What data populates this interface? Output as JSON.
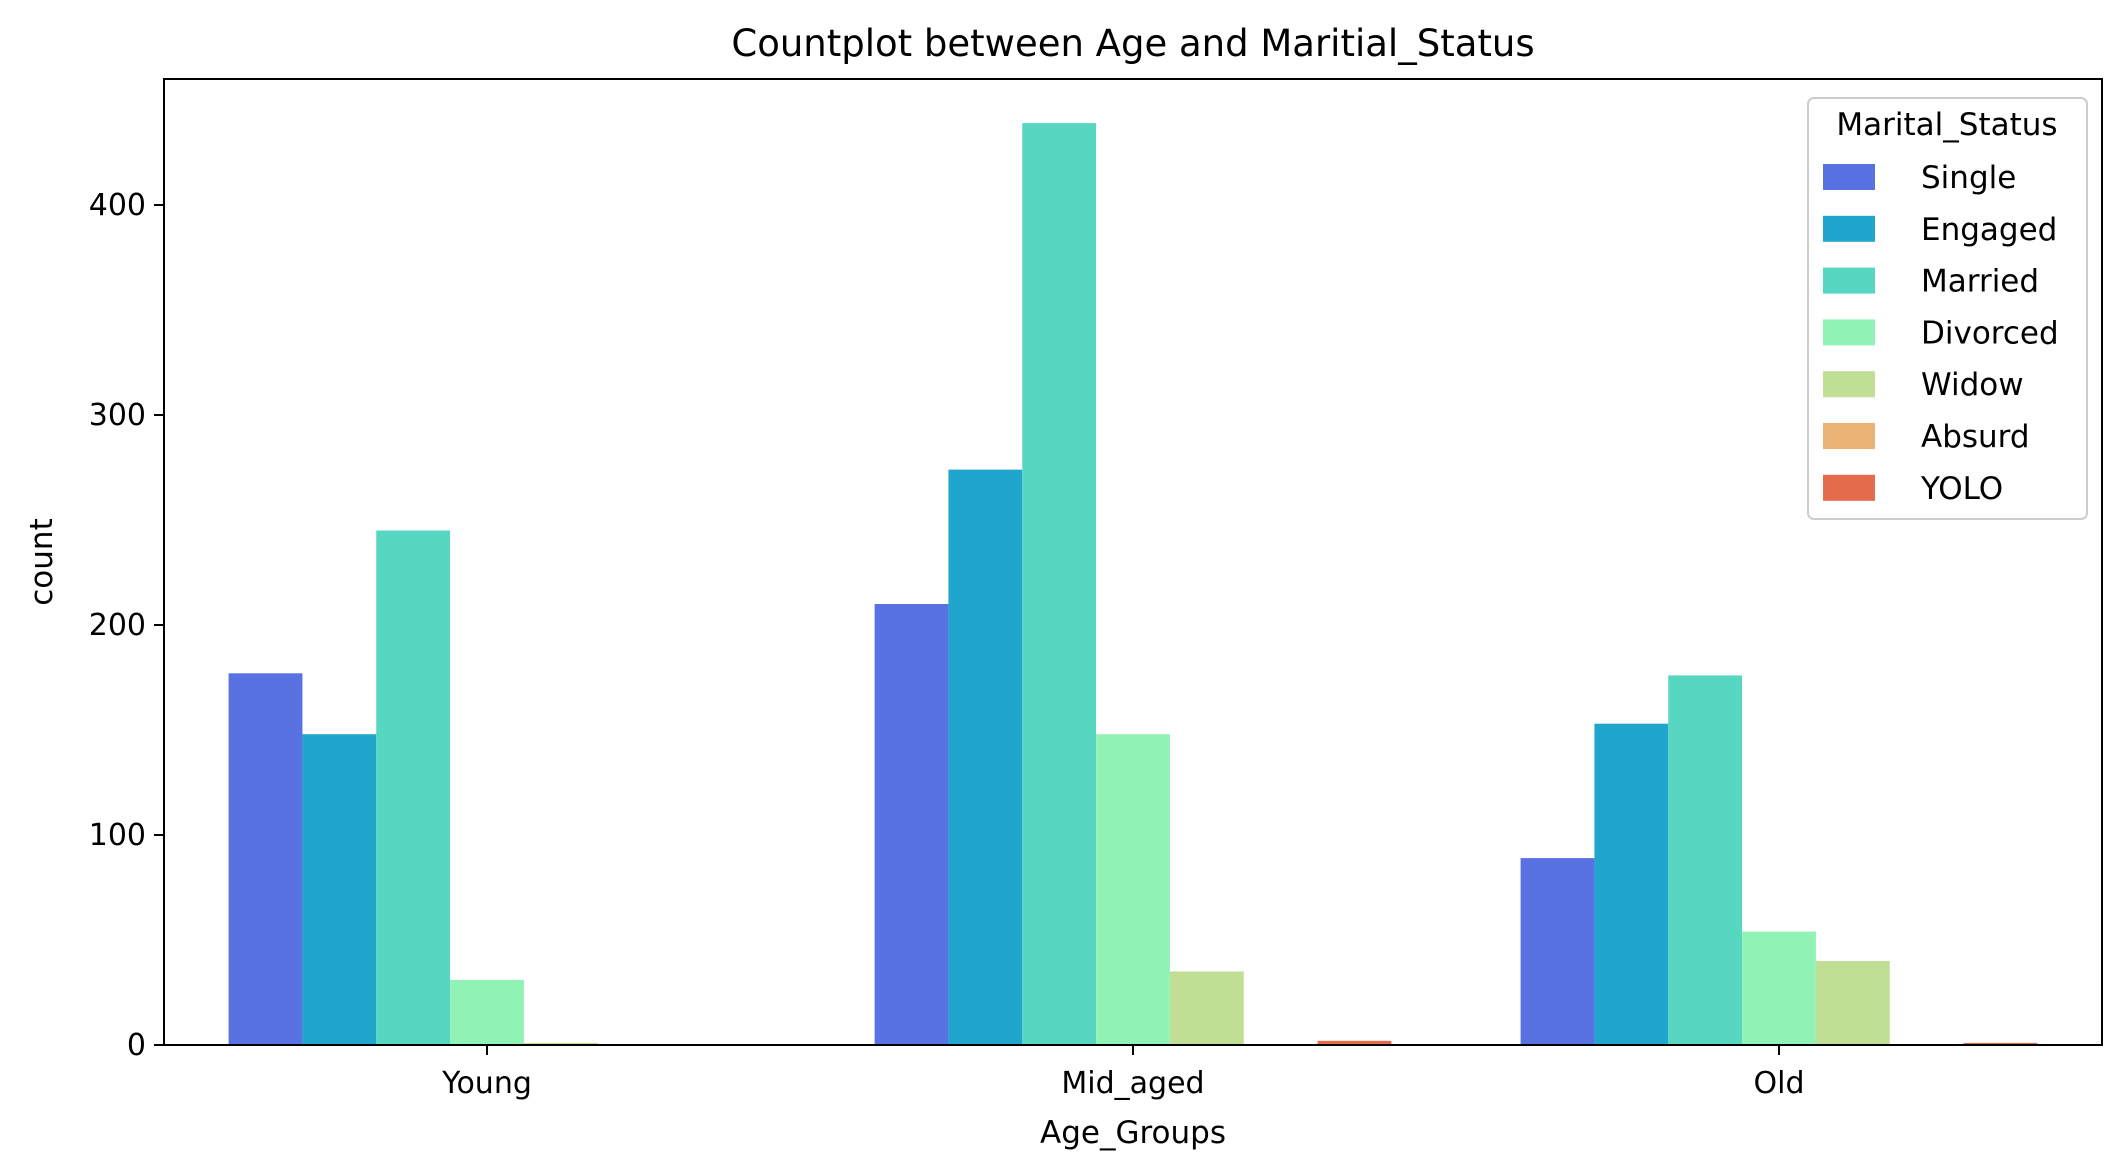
{
  "chart_data": {
    "type": "bar",
    "title": "Countplot between Age and Maritial_Status",
    "xlabel": "Age_Groups",
    "ylabel": "count",
    "categories": [
      "Young",
      "Mid_aged",
      "Old"
    ],
    "ylim": [
      0,
      460
    ],
    "yticks": [
      0,
      100,
      200,
      300,
      400
    ],
    "grid": false,
    "legend": {
      "title": "Marital_Status",
      "placement": "top-right"
    },
    "series": [
      {
        "name": "Single",
        "color": "#5872e2",
        "values": [
          177,
          210,
          89
        ]
      },
      {
        "name": "Engaged",
        "color": "#20a6cc",
        "values": [
          148,
          274,
          153
        ]
      },
      {
        "name": "Married",
        "color": "#57d7c2",
        "values": [
          245,
          439,
          176
        ]
      },
      {
        "name": "Divorced",
        "color": "#91f2b6",
        "values": [
          31,
          148,
          54
        ]
      },
      {
        "name": "Widow",
        "color": "#c1de95",
        "values": [
          1,
          35,
          40
        ]
      },
      {
        "name": "Absurd",
        "color": "#ebb275",
        "values": [
          0.5,
          0,
          0
        ]
      },
      {
        "name": "YOLO",
        "color": "#e46b4c",
        "values": [
          0.5,
          2,
          1
        ]
      }
    ]
  }
}
